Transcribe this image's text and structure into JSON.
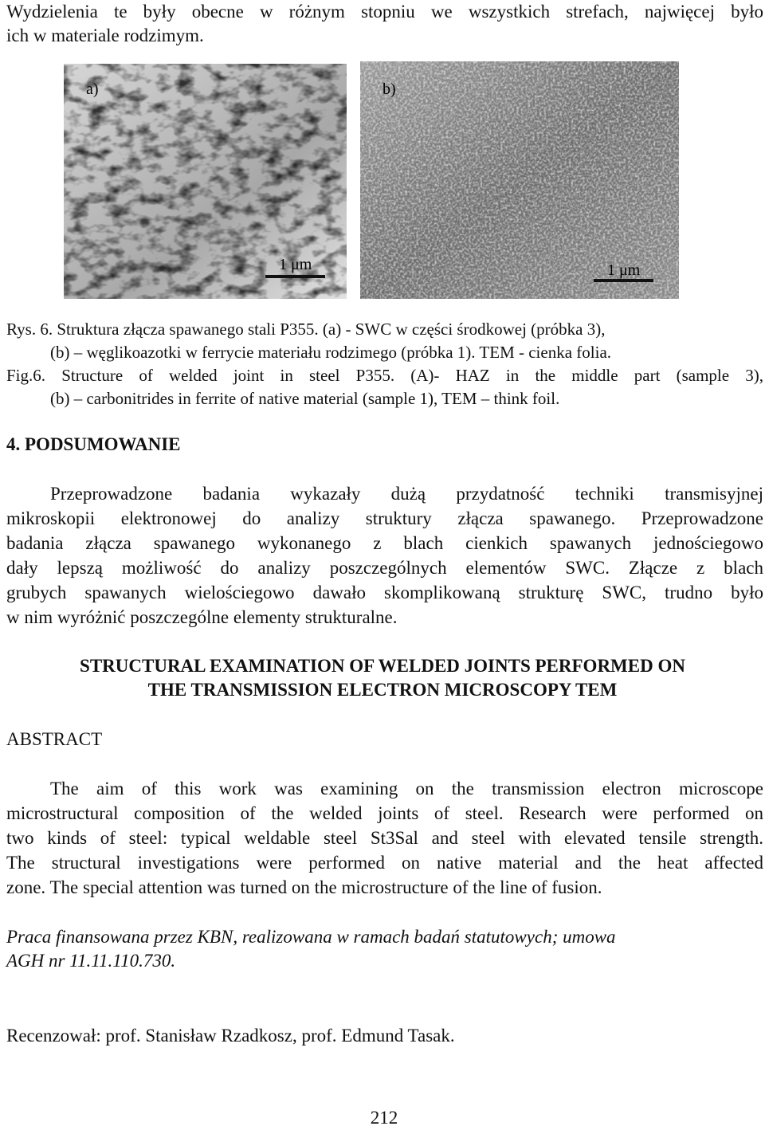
{
  "intro": [
    "Wydzielenia te były obecne w różnym stopniu we wszystkich strefach, najwięcej było",
    "ich w materiale rodzimym."
  ],
  "figure": {
    "panels": [
      {
        "label": "a)",
        "scale": "1 μm"
      },
      {
        "label": "b)",
        "scale": "1 μm"
      }
    ],
    "caption_pl": [
      "Rys. 6. Struktura złącza spawanego stali P355. (a) - SWC w części środkowej (próbka 3),",
      "(b) – węglikoazotki w ferrycie materiału rodzimego (próbka 1). TEM - cienka folia."
    ],
    "caption_en": [
      "Fig.6. Structure of welded joint in steel P355. (A)- HAZ in the middle part (sample 3),",
      "(b) – carbonitrides in ferrite of native material (sample 1), TEM – think foil."
    ]
  },
  "section": {
    "heading": "4. PODSUMOWANIE",
    "lines": [
      "Przeprowadzone badania wykazały dużą przydatność techniki transmisyjnej",
      "mikroskopii elektronowej do analizy struktury złącza spawanego. Przeprowadzone",
      "badania złącza spawanego wykonanego z blach cienkich spawanych jednościegowo",
      "dały lepszą możliwość do analizy poszczególnych elementów SWC. Złącze z blach",
      "grubych spawanych wielościegowo dawało skomplikowaną strukturę SWC, trudno było",
      "w nim wyróżnić poszczególne elementy strukturalne."
    ]
  },
  "english": {
    "title": [
      "STRUCTURAL EXAMINATION OF WELDED JOINTS PERFORMED ON",
      "THE TRANSMISSION ELECTRON MICROSCOPY TEM"
    ],
    "abstract_heading": "ABSTRACT",
    "abstract": [
      "The aim of this work was examining on the transmission electron microscope",
      "microstructural composition of the welded joints of steel. Research were performed on",
      "two kinds of steel: typical weldable steel St3Sal and steel with elevated tensile strength.",
      "The structural investigations were performed on native material and the heat affected",
      "zone. The special attention was turned on the microstructure of the line of fusion."
    ]
  },
  "funding": [
    "Praca finansowana przez KBN, realizowana w ramach badań statutowych; umowa",
    "AGH nr 11.11.110.730."
  ],
  "review": "Recenzował: prof. Stanisław Rzadkosz, prof. Edmund Tasak.",
  "page_number": "212"
}
